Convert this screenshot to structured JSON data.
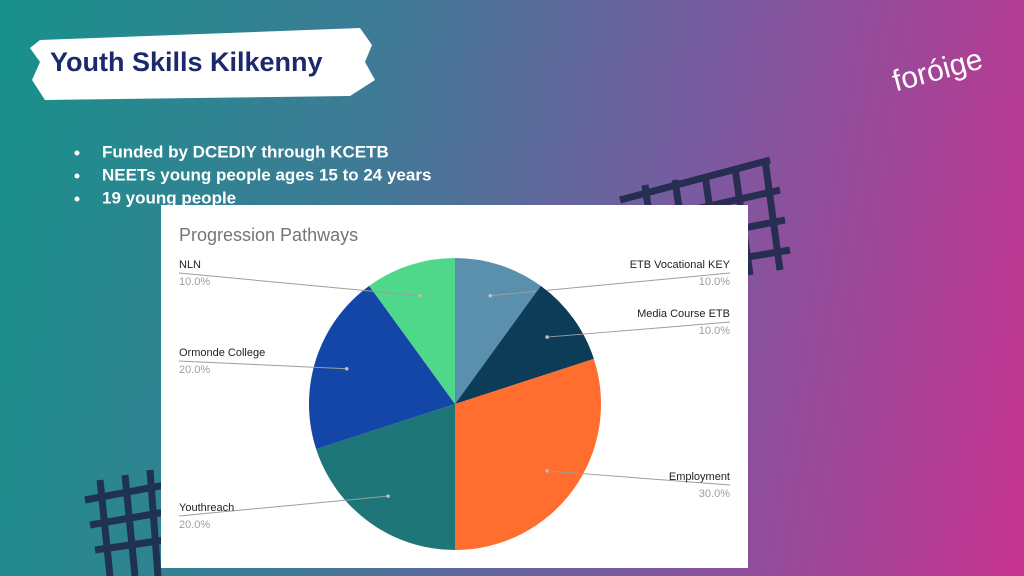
{
  "slide": {
    "title": "Youth Skills Kilkenny",
    "bullets": [
      "Funded by DCEDIY through KCETB",
      "NEETs young people ages 15 to 24 years",
      "19 young people"
    ],
    "logo": "foróige"
  },
  "chart_data": {
    "type": "pie",
    "title": "Progression Pathways",
    "categories": [
      "ETB Vocational KEY",
      "Media Course ETB",
      "Employment",
      "Youthreach",
      "Ormonde College",
      "NLN"
    ],
    "values": [
      10,
      10,
      30,
      20,
      20,
      10
    ],
    "value_labels": [
      "10.0%",
      "10.0%",
      "30.0%",
      "20.0%",
      "20.0%",
      "10.0%"
    ],
    "colors": [
      "#5a8fae",
      "#0c3c58",
      "#ff6d2f",
      "#1f7679",
      "#1446a8",
      "#4fd88a"
    ]
  }
}
